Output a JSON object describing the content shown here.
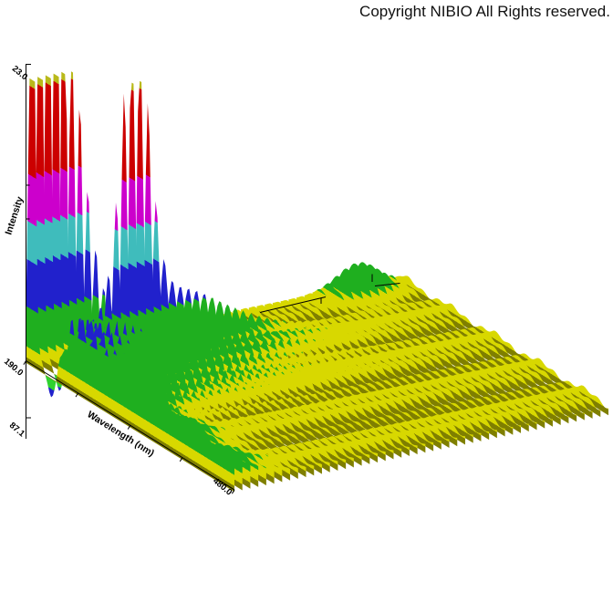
{
  "copyright": "Copyright NIBIO All Rights reserved.",
  "chart_data": {
    "type": "surface3d-waterfall",
    "title": "",
    "description": "3D photodiode-array surface plot: Intensity vs Wavelength (nm) vs elution time. Two tall clipped peaks near 200 and 238 nm at early time, a negative dip below baseline near 226 nm, low braided ridges 240-340 nm, a small late-eluting green peak near 210 nm, and a flat yellow baseline floor elsewhere.",
    "axes": {
      "intensity": {
        "label": "Intensity",
        "max_tick": "23.0",
        "min_tick": "87.1"
      },
      "wavelength": {
        "label": "Wavelength (nm)",
        "min_tick": "190.0",
        "max_tick": "480.0",
        "range_nm": [
          190,
          480
        ]
      },
      "time": {
        "label": "",
        "tick_labels": []
      }
    },
    "palette": {
      "background": "#ffffff",
      "axis": "#000000",
      "bands": [
        {
          "from": -0.16,
          "to": -0.042,
          "color": "#2121cc"
        },
        {
          "from": -0.042,
          "to": -0.009,
          "color": "#2fd32f"
        },
        {
          "from": -0.009,
          "to": 0.013,
          "color": "#7f7f00"
        },
        {
          "from": 0.013,
          "to": 0.05,
          "color": "#d8d800"
        },
        {
          "from": 0.05,
          "to": 0.185,
          "color": "#1faf1f"
        },
        {
          "from": 0.185,
          "to": 0.345,
          "color": "#2121cc"
        },
        {
          "from": 0.345,
          "to": 0.475,
          "color": "#3fbcbc"
        },
        {
          "from": 0.475,
          "to": 0.635,
          "color": "#cc00cc"
        },
        {
          "from": 0.635,
          "to": 0.935,
          "color": "#cc0000"
        },
        {
          "from": 0.935,
          "to": 1.0,
          "color": "#b9b91a"
        }
      ]
    },
    "projection": {
      "origin": [
        28.5,
        395.5
      ],
      "wavelength_vec": [
        228.5,
        141.5
      ],
      "time_vec": [
        410,
        -84
      ],
      "intensity_scale": 325,
      "v_min": -0.16,
      "v_max": 1.0,
      "close_v": -0.007
    },
    "surface": {
      "slices": 48,
      "lambda_min": 190,
      "lambda_max": 480,
      "lambda_step": 2.5,
      "clip": 0.96,
      "floor": {
        "base": 0.026,
        "waves": [
          [
            0.009,
            0.1,
            0.8
          ],
          [
            0.006,
            0.31,
            -2.0
          ]
        ]
      },
      "features": [
        {
          "name": "front-peak-200nm",
          "l0": 198.5,
          "lw": 4.6,
          "amp": 2.8,
          "tprofile": "front",
          "tw": 0.115
        },
        {
          "name": "front-dip-negative",
          "l0": 226,
          "lw": 14,
          "amp": -0.145,
          "tprofile": "front",
          "tw": 0.06
        },
        {
          "name": "peak-238nm-main",
          "l0": 238,
          "lw": 4.8,
          "amp": 1.02,
          "tprofile": "gauss",
          "t0": 0.2,
          "tw": 0.05
        },
        {
          "name": "peak-238nm-tail",
          "l0": 238,
          "lw": 8,
          "amp": 0.2,
          "tprofile": "gauss",
          "t0": 0.28,
          "tw": 0.22
        },
        {
          "name": "braid-ridges-1",
          "l0": 282,
          "lw": 37,
          "amp": 0.085,
          "tprofile": "front",
          "tw": 0.42,
          "sin": [
            0.6,
            0.38,
            -9
          ]
        },
        {
          "name": "braid-ridges-2",
          "l0": 258,
          "lw": 17,
          "amp": 0.05,
          "tprofile": "front",
          "tw": 0.45,
          "sin": [
            0.5,
            0.55,
            20
          ]
        },
        {
          "name": "braid-ripple",
          "l0": 300,
          "lw": 55,
          "amp": 0.022,
          "tprofile": "front",
          "tw": 0.5,
          "sin": [
            0.8,
            0.75,
            -25
          ]
        },
        {
          "name": "late-green-peak",
          "l0": 210,
          "lw": 18,
          "amp": 0.105,
          "tprofile": "gauss",
          "t0": 0.86,
          "tw": 0.078
        },
        {
          "name": "front-wash",
          "l0": 370,
          "lw": 230,
          "amp": 0.07,
          "tprofile": "front",
          "tw": 0.1
        }
      ]
    }
  }
}
